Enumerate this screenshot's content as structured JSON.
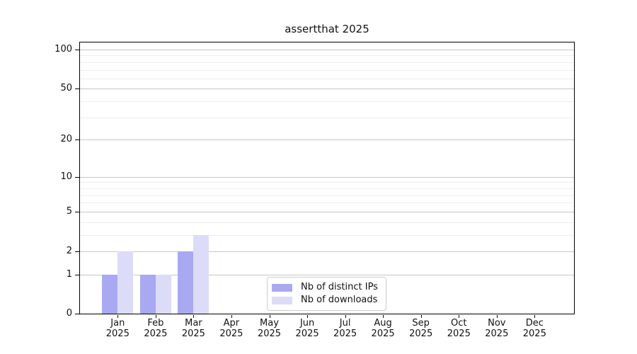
{
  "chart_data": {
    "type": "bar",
    "title": "assertthat 2025",
    "categories": [
      "Jan",
      "Feb",
      "Mar",
      "Apr",
      "May",
      "Jun",
      "Jul",
      "Aug",
      "Sep",
      "Oct",
      "Nov",
      "Dec"
    ],
    "category_sublabel": "2025",
    "series": [
      {
        "name": "Nb of distinct IPs",
        "color": "#a9a9f1",
        "values": [
          1,
          1,
          2,
          0,
          0,
          0,
          0,
          0,
          0,
          0,
          0,
          0
        ]
      },
      {
        "name": "Nb of downloads",
        "color": "#dcdcf9",
        "values": [
          2,
          1,
          3,
          0,
          0,
          0,
          0,
          0,
          0,
          0,
          0,
          0
        ]
      }
    ],
    "xlabel": "",
    "ylabel": "",
    "y_scale": "log10(value+1)",
    "y_ticks": [
      0,
      1,
      2,
      5,
      10,
      20,
      50,
      100
    ],
    "y_minor_gridlines": [
      3,
      4,
      6,
      7,
      8,
      9,
      30,
      40,
      60,
      70,
      80,
      90
    ],
    "ylim": [
      0,
      113
    ],
    "grid": "horizontal",
    "legend_position": "bottom-center-inside",
    "colors": {
      "major_grid": "#c6c6c6",
      "minor_grid": "#eeeeee",
      "axis": "#000000",
      "background": "#ffffff"
    }
  }
}
